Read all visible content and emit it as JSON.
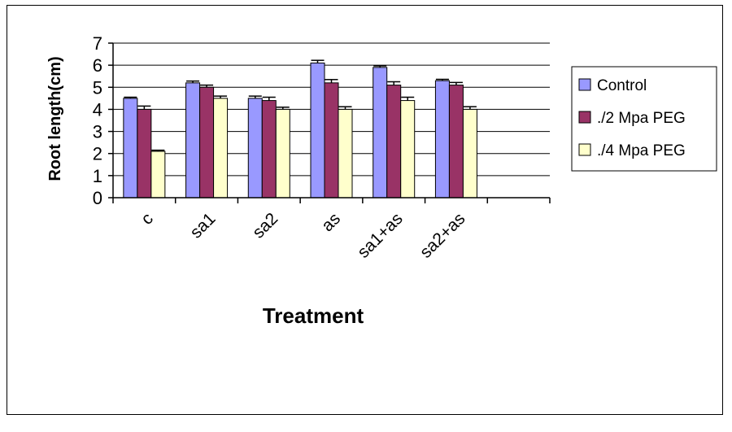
{
  "chart_data": {
    "type": "bar",
    "title": "",
    "xlabel": "Treatment",
    "ylabel": "Root length(cm)",
    "categories": [
      "c",
      "sa1",
      "sa2",
      "as",
      "sa1+as",
      "sa2+as"
    ],
    "ylim": [
      0,
      7
    ],
    "yticks": [
      0,
      1,
      2,
      3,
      4,
      5,
      6,
      7
    ],
    "grid": true,
    "legend_position": "right",
    "series": [
      {
        "name": "Control",
        "color": "#9999ff",
        "values": [
          4.5,
          5.2,
          4.5,
          6.1,
          5.9,
          5.3
        ],
        "errors": [
          0.05,
          0.08,
          0.1,
          0.12,
          0.07,
          0.06
        ]
      },
      {
        "name": "./2 Mpa PEG",
        "color": "#993366",
        "values": [
          4.0,
          5.0,
          4.4,
          5.2,
          5.1,
          5.1
        ],
        "errors": [
          0.15,
          0.1,
          0.15,
          0.15,
          0.15,
          0.12
        ]
      },
      {
        "name": "./4 Mpa PEG",
        "color": "#ffffcc",
        "values": [
          2.1,
          4.5,
          4.0,
          4.0,
          4.4,
          4.0
        ],
        "errors": [
          0.05,
          0.1,
          0.1,
          0.12,
          0.15,
          0.12
        ]
      }
    ]
  }
}
